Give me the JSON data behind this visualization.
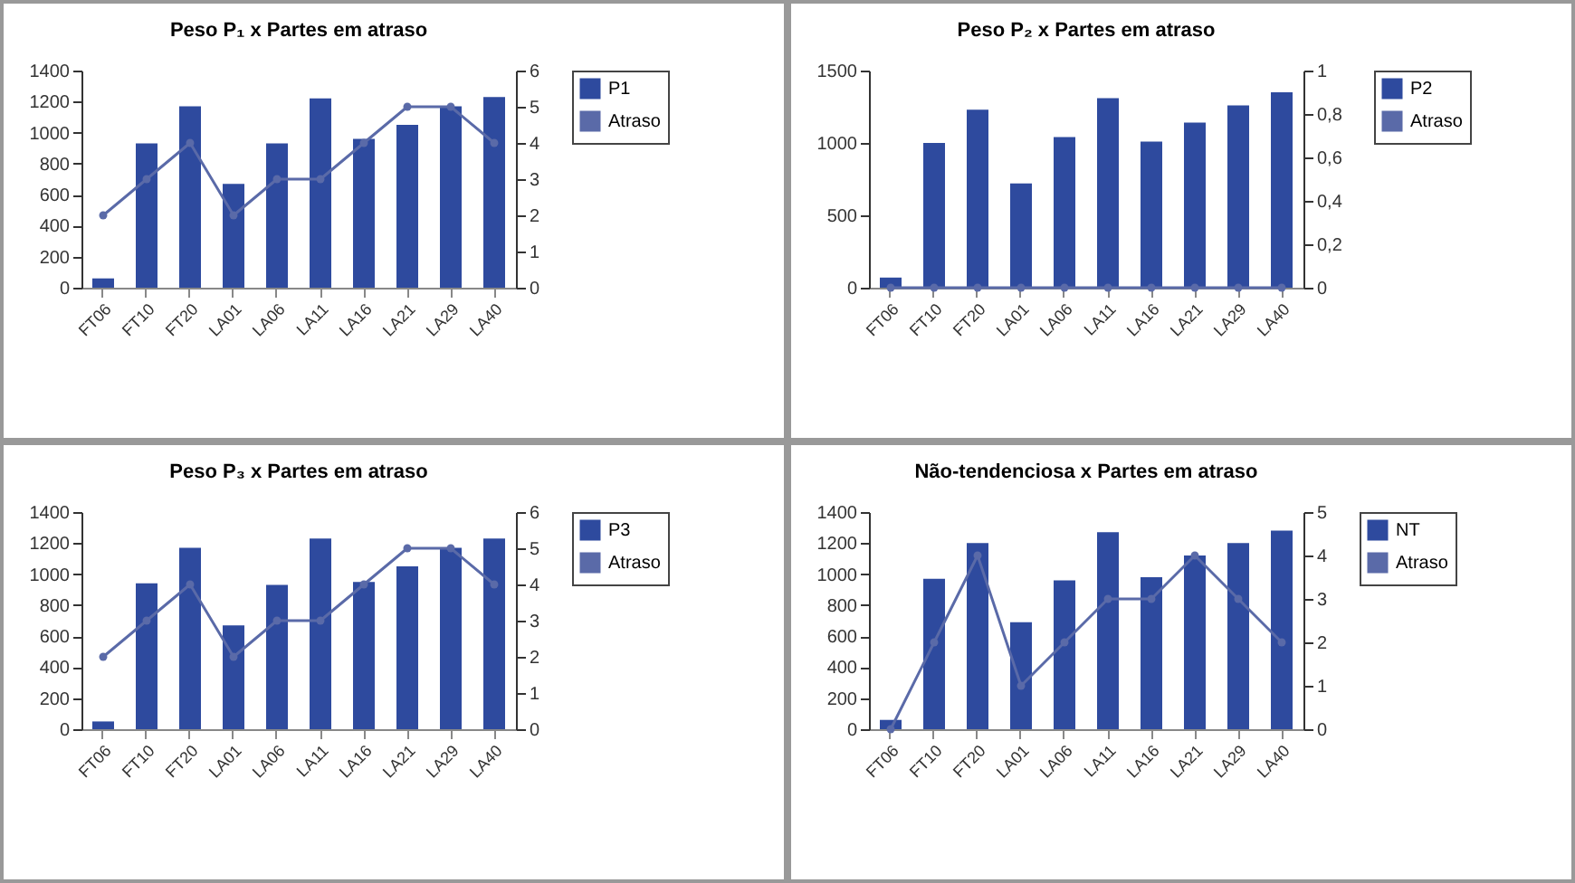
{
  "chart_data": [
    {
      "type": "bar",
      "title": "Peso P₁ x Partes em atraso",
      "categories": [
        "FT06",
        "FT10",
        "FT20",
        "LA01",
        "LA06",
        "LA11",
        "LA16",
        "LA21",
        "LA29",
        "LA40"
      ],
      "series": [
        {
          "name": "P1",
          "color": "#2e4a9e",
          "values": [
            60,
            930,
            1170,
            670,
            930,
            1220,
            960,
            1050,
            1170,
            1230
          ]
        },
        {
          "name": "Atraso",
          "type": "line",
          "axis": "y2",
          "color": "#5a6aa8",
          "values": [
            2,
            3,
            4,
            2,
            3,
            3,
            4,
            5,
            5,
            4
          ]
        }
      ],
      "ylim": [
        0,
        1400
      ],
      "yticks": [
        0,
        200,
        400,
        600,
        800,
        1000,
        1200,
        1400
      ],
      "y2lim": [
        0,
        6
      ],
      "y2ticks": [
        0,
        1,
        2,
        3,
        4,
        5,
        6
      ],
      "legend": "right",
      "marker": "circle"
    },
    {
      "type": "bar",
      "title": "Peso P₂ x Partes em atraso",
      "categories": [
        "FT06",
        "FT10",
        "FT20",
        "LA01",
        "LA06",
        "LA11",
        "LA16",
        "LA21",
        "LA29",
        "LA40"
      ],
      "series": [
        {
          "name": "P2",
          "color": "#2e4a9e",
          "values": [
            70,
            1000,
            1230,
            720,
            1040,
            1310,
            1010,
            1140,
            1260,
            1350
          ]
        },
        {
          "name": "Atraso",
          "type": "line",
          "axis": "y2",
          "color": "#5a6aa8",
          "values": [
            0,
            0,
            0,
            0,
            0,
            0,
            0,
            0,
            0,
            0
          ]
        }
      ],
      "ylim": [
        0,
        1500
      ],
      "yticks": [
        0,
        500,
        1000,
        1500
      ],
      "y2lim": [
        0,
        1
      ],
      "y2ticks": [
        0,
        {
          "value": 0.2,
          "label": "0,2"
        },
        {
          "value": 0.4,
          "label": "0,4"
        },
        {
          "value": 0.6,
          "label": "0,6"
        },
        {
          "value": 0.8,
          "label": "0,8"
        },
        1
      ],
      "legend": "right",
      "marker": "circle"
    },
    {
      "type": "bar",
      "title": "Peso P₃ x Partes em atraso",
      "categories": [
        "FT06",
        "FT10",
        "FT20",
        "LA01",
        "LA06",
        "LA11",
        "LA16",
        "LA21",
        "LA29",
        "LA40"
      ],
      "series": [
        {
          "name": "P3",
          "color": "#2e4a9e",
          "values": [
            50,
            940,
            1170,
            670,
            930,
            1230,
            950,
            1050,
            1170,
            1230
          ]
        },
        {
          "name": "Atraso",
          "type": "line",
          "axis": "y2",
          "color": "#5a6aa8",
          "values": [
            2,
            3,
            4,
            2,
            3,
            3,
            4,
            5,
            5,
            4
          ]
        }
      ],
      "ylim": [
        0,
        1400
      ],
      "yticks": [
        0,
        200,
        400,
        600,
        800,
        1000,
        1200,
        1400
      ],
      "y2lim": [
        0,
        6
      ],
      "y2ticks": [
        0,
        1,
        2,
        3,
        4,
        5,
        6
      ],
      "legend": "right",
      "marker": "circle"
    },
    {
      "type": "bar",
      "title": "Não-tendenciosa x Partes em atraso",
      "categories": [
        "FT06",
        "FT10",
        "FT20",
        "LA01",
        "LA06",
        "LA11",
        "LA16",
        "LA21",
        "LA29",
        "LA40"
      ],
      "series": [
        {
          "name": "NT",
          "color": "#2e4a9e",
          "values": [
            60,
            970,
            1200,
            690,
            960,
            1270,
            980,
            1120,
            1200,
            1280
          ]
        },
        {
          "name": "Atraso",
          "type": "line",
          "axis": "y2",
          "color": "#5a6aa8",
          "values": [
            0,
            2,
            4,
            1,
            2,
            3,
            3,
            4,
            3,
            2
          ]
        }
      ],
      "ylim": [
        0,
        1400
      ],
      "yticks": [
        0,
        200,
        400,
        600,
        800,
        1000,
        1200,
        1400
      ],
      "y2lim": [
        0,
        5
      ],
      "y2ticks": [
        0,
        1,
        2,
        3,
        4,
        5
      ],
      "legend": "right",
      "marker": "circle"
    }
  ]
}
